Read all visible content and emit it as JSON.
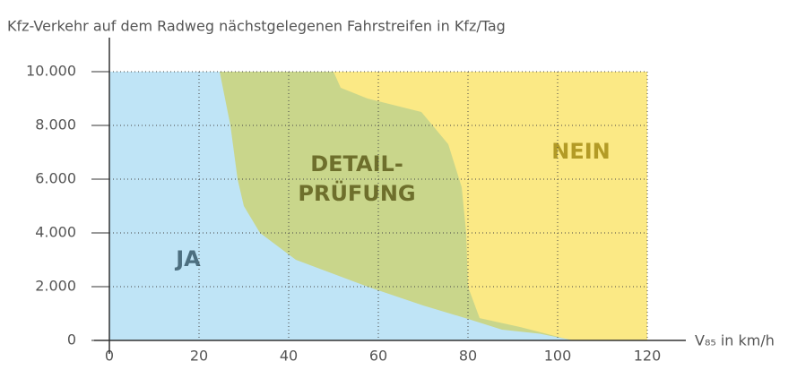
{
  "chart_data": {
    "type": "area",
    "ylabel": "Kfz-Verkehr auf dem Radweg nächstgelegenen Fahrstreifen in Kfz/Tag",
    "xlabel": "V₈₅ in km/h",
    "xlim": [
      0,
      120
    ],
    "xticks": [
      0,
      20,
      40,
      60,
      80,
      100,
      120
    ],
    "ylim": [
      0,
      10000
    ],
    "yticks": [
      0,
      {
        "value": 2000,
        "label": "2.000"
      },
      {
        "value": 4000,
        "label": "4.000"
      },
      {
        "value": 6000,
        "label": "6.000"
      },
      {
        "value": 8000,
        "label": "8.000"
      },
      {
        "value": 10000,
        "label": "10.000"
      }
    ],
    "grid": true,
    "series": [
      {
        "label": [
          "NEIN"
        ],
        "color": "#fbe985",
        "x": [
          0,
          120
        ],
        "values": [
          10000,
          10000
        ]
      },
      {
        "label": [
          "DETAIL-",
          "PRÜFUNG"
        ],
        "color": "#c9d68b",
        "x": [
          0,
          50,
          51.6,
          57.6,
          69.6,
          75.6,
          78.6,
          79.6,
          80,
          82.6,
          91.6,
          101.6,
          103.6
        ],
        "values": [
          10000,
          10000,
          9400,
          9000,
          8500,
          7300,
          5700,
          4000,
          2000,
          830,
          500,
          70,
          0
        ]
      },
      {
        "label": [
          "JA"
        ],
        "color": "#bfe4f6",
        "x": [
          0,
          24.6,
          27,
          28.6,
          30,
          33.6,
          41.6,
          57.6,
          70,
          80,
          87.6,
          96,
          103.6
        ],
        "values": [
          10000,
          10000,
          8000,
          6000,
          5000,
          4000,
          3000,
          2000,
          1300,
          800,
          400,
          250,
          0
        ]
      }
    ]
  }
}
